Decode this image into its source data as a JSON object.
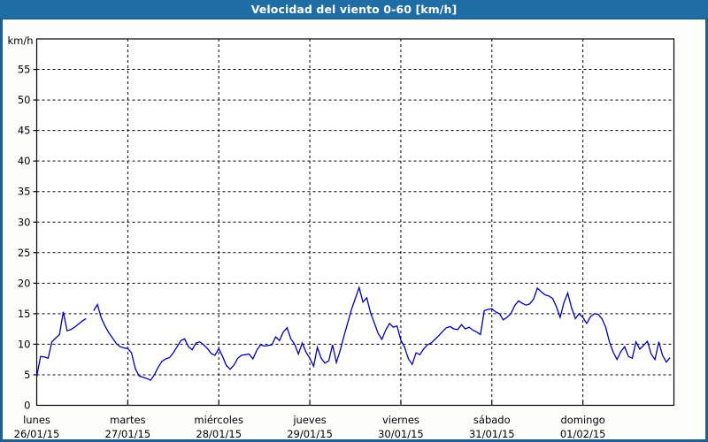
{
  "header": {
    "title": "Velocidad del viento 0-60 [km/h]"
  },
  "colors": {
    "titlebar_bg": "#1f6da5",
    "frame_border": "#20608f",
    "canvas_bg": "#fdfdfc",
    "plot_bg": "#ffffff",
    "grid": "#000000",
    "axis": "#000000",
    "line": "#0000b4",
    "text": "#000000",
    "title_text": "#ffffff"
  },
  "chart_data": {
    "type": "line",
    "title": "Velocidad del viento 0-60 [km/h]",
    "ylabel": "km/h",
    "xlabel": "",
    "ylim": [
      0,
      60
    ],
    "ytick_step": 5,
    "yticks": [
      0,
      5,
      10,
      15,
      20,
      25,
      30,
      35,
      40,
      45,
      50,
      55
    ],
    "grid": "dashed",
    "legend": "none",
    "sampling": "hourly",
    "days": [
      {
        "name": "lunes",
        "date": "26/01/15",
        "values": [
          4.7,
          8.0,
          7.9,
          7.7,
          10.4,
          11.0,
          11.6,
          15.3,
          12.2,
          12.4,
          12.8,
          13.3,
          13.8,
          14.2,
          null,
          15.5,
          16.5,
          14.3,
          13.0,
          11.9,
          11.0,
          10.1,
          9.6,
          9.4
        ]
      },
      {
        "name": "martes",
        "date": "27/01/15",
        "values": [
          9.3,
          8.6,
          6.0,
          4.8,
          4.6,
          4.4,
          4.1,
          5.0,
          6.2,
          7.2,
          7.6,
          7.8,
          8.6,
          9.6,
          10.6,
          10.9,
          9.6,
          9.1,
          10.2,
          10.4,
          9.9,
          9.3,
          8.5,
          8.2
        ]
      },
      {
        "name": "miércoles",
        "date": "28/01/15",
        "values": [
          9.3,
          8.0,
          6.5,
          5.9,
          6.6,
          7.7,
          8.2,
          8.3,
          8.4,
          7.6,
          9.0,
          9.9,
          9.7,
          9.8,
          9.9,
          11.2,
          10.6,
          12.0,
          12.7,
          10.9,
          10.0,
          8.4,
          10.2,
          8.7
        ]
      },
      {
        "name": "jueves",
        "date": "29/01/15",
        "values": [
          7.7,
          6.4,
          9.5,
          7.7,
          6.9,
          7.3,
          9.9,
          7.0,
          9.0,
          11.3,
          13.5,
          15.7,
          17.5,
          19.3,
          16.9,
          17.6,
          15.2,
          13.5,
          11.8,
          10.8,
          12.3,
          13.4,
          12.8,
          13.0
        ]
      },
      {
        "name": "viernes",
        "date": "30/01/15",
        "values": [
          10.7,
          9.5,
          7.6,
          6.7,
          8.6,
          8.3,
          9.2,
          9.9,
          10.2,
          10.8,
          11.4,
          12.1,
          12.7,
          12.9,
          12.5,
          12.4,
          13.2,
          12.5,
          12.8,
          12.3,
          12.0,
          11.6,
          15.5,
          15.7
        ]
      },
      {
        "name": "sábado",
        "date": "31/01/15",
        "values": [
          15.8,
          15.3,
          15.0,
          14.0,
          14.4,
          15.0,
          16.3,
          17.1,
          16.7,
          16.4,
          16.6,
          17.4,
          19.2,
          18.6,
          18.1,
          17.9,
          17.5,
          16.2,
          14.4,
          16.8,
          18.4,
          16.0,
          14.2,
          15.0
        ]
      },
      {
        "name": "domingo",
        "date": "01/02/15",
        "values": [
          14.4,
          13.4,
          14.5,
          15.0,
          14.9,
          14.2,
          12.8,
          10.4,
          8.7,
          7.5,
          8.8,
          9.6,
          8.0,
          7.7,
          10.4,
          9.2,
          9.8,
          10.5,
          8.4,
          7.5,
          10.4,
          8.2,
          7.1,
          7.8
        ]
      }
    ]
  }
}
